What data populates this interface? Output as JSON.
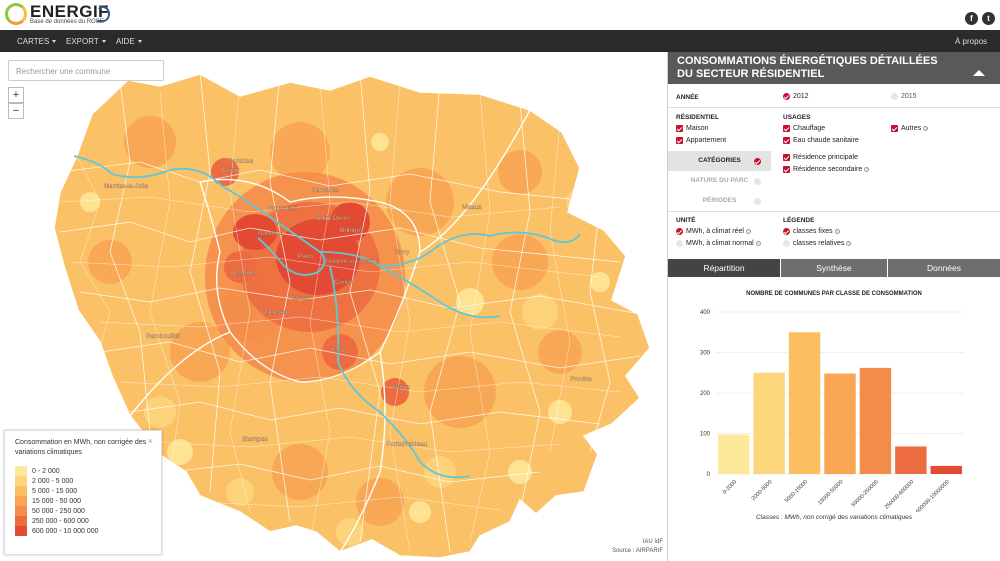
{
  "header": {
    "logo_title": "ENERGIF",
    "logo_subtitle": "Base de données du ROSE",
    "social": [
      {
        "icon": "facebook-icon",
        "glyph": "f"
      },
      {
        "icon": "twitter-icon",
        "glyph": "t"
      }
    ]
  },
  "nav": {
    "menus": [
      "CARTES",
      "EXPORT",
      "AIDE"
    ],
    "about": "À propos"
  },
  "map": {
    "search_placeholder": "Rechercher une commune",
    "zoom_in": "+",
    "zoom_out": "−",
    "legend": {
      "title": "Consommation en MWh, non corrigée des variations climatiques",
      "close": "×",
      "classes": [
        {
          "label": "0 - 2 000",
          "color": "#fde99a"
        },
        {
          "label": "2 000 - 5 000",
          "color": "#fcd57c"
        },
        {
          "label": "5 000 - 15 000",
          "color": "#fbbf62"
        },
        {
          "label": "15 000 - 50 000",
          "color": "#f8a654"
        },
        {
          "label": "50 000 - 250 000",
          "color": "#f38b4a"
        },
        {
          "label": "250 000 - 600 000",
          "color": "#ec6b41"
        },
        {
          "label": "600 000 - 10 000 000",
          "color": "#e34a33"
        }
      ]
    },
    "attribution": [
      "IAU îdF",
      "Source : AIRPARIF"
    ],
    "places": [
      "Mantes-la-Jolie",
      "Cergy",
      "Pontoise",
      "Argenteuil",
      "Saint-Denis",
      "Sarcelles",
      "Nanterre",
      "Bobigny",
      "Meaux",
      "Paris",
      "Nogent-sur-Marne",
      "Torcy",
      "Versailles",
      "Créteil",
      "Clamart",
      "Palaiseau",
      "Rambouillet",
      "Evry",
      "Melun",
      "Provins",
      "Etampes",
      "Fontainebleau"
    ]
  },
  "panel": {
    "title_line1": "CONSOMMATIONS ÉNERGÉTIQUES DÉTAILLÉES",
    "title_line2": "DU SECTEUR RÉSIDENTIEL",
    "annee": {
      "label": "ANNÉE",
      "options": [
        "2012",
        "2015"
      ],
      "selected": "2012"
    },
    "residentiel": {
      "label": "RÉSIDENTIEL",
      "options": [
        "Maison",
        "Appartement"
      ]
    },
    "usages": {
      "label": "USAGES",
      "options": [
        "Chauffage",
        "Eau chaude sanitaire",
        "Autres"
      ]
    },
    "vtabs": [
      "CATÉGORIES",
      "NATURE DU PARC",
      "PÉRIODES"
    ],
    "categories": [
      "Résidence principale",
      "Résidence secondaire"
    ],
    "unite": {
      "label": "UNITÉ",
      "options": [
        "MWh, à climat réel",
        "MWh, à climat normal"
      ],
      "selected": "MWh, à climat réel"
    },
    "legende": {
      "label": "LÉGENDE",
      "options": [
        "classes fixes",
        "classes relatives"
      ],
      "selected": "classes fixes"
    },
    "tabs": [
      "Répartition",
      "Synthèse",
      "Données"
    ],
    "active_tab": "Répartition",
    "chart_title": "NOMBRE DE COMMUNES PAR CLASSE DE CONSOMMATION",
    "chart_caption": "Classes : MWh, non corrigé des variations climatiques"
  },
  "chart_data": {
    "type": "bar",
    "title": "NOMBRE DE COMMUNES PAR CLASSE DE CONSOMMATION",
    "categories": [
      "0-2000",
      "2000-5000",
      "5000-15000",
      "15000-50000",
      "50000-250000",
      "250000-600000",
      "600000-10000000"
    ],
    "values": [
      97,
      250,
      350,
      248,
      262,
      68,
      20
    ],
    "colors": [
      "#fde99a",
      "#fcd57c",
      "#fbbf62",
      "#f8a654",
      "#f38b4a",
      "#ec6b41",
      "#e34a33"
    ],
    "yticks": [
      0,
      100,
      200,
      300,
      400
    ],
    "ylim": [
      0,
      400
    ],
    "grid": true,
    "xlabel": "Classes : MWh, non corrigé des variations climatiques",
    "ylabel": ""
  }
}
